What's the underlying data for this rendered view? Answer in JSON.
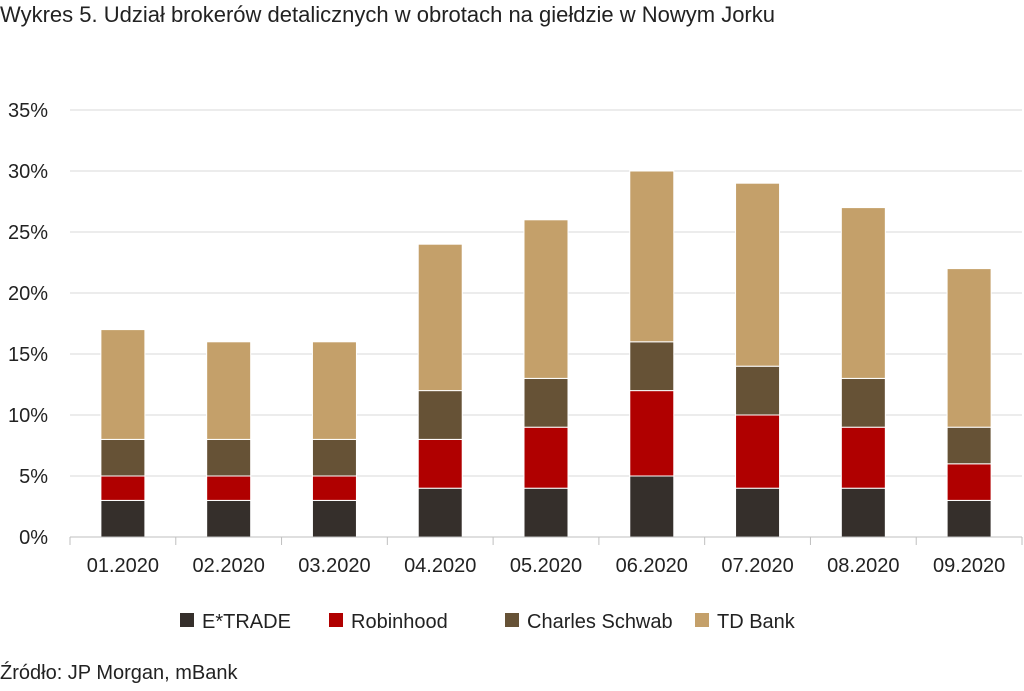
{
  "chart_data": {
    "type": "bar",
    "stacked": true,
    "title": "Wykres 5. Udział brokerów detalicznych w obrotach na giełdzie w Nowym Jorku",
    "source": "Źródło: JP Morgan, mBank",
    "categories": [
      "01.2020",
      "02.2020",
      "03.2020",
      "04.2020",
      "05.2020",
      "06.2020",
      "07.2020",
      "08.2020",
      "09.2020"
    ],
    "y_ticks": [
      "0%",
      "5%",
      "10%",
      "15%",
      "20%",
      "25%",
      "30%",
      "35%"
    ],
    "ylim": [
      0,
      35
    ],
    "grid": true,
    "legend_position": "bottom",
    "series": [
      {
        "name": "E*TRADE",
        "color": "#352f2b",
        "values": [
          3,
          3,
          3,
          4,
          4,
          5,
          4,
          4,
          3
        ]
      },
      {
        "name": "Robinhood",
        "color": "#b00000",
        "values": [
          2,
          2,
          2,
          4,
          5,
          7,
          6,
          5,
          3
        ]
      },
      {
        "name": "Charles Schwab",
        "color": "#665236",
        "values": [
          3,
          3,
          3,
          4,
          4,
          4,
          4,
          4,
          3
        ]
      },
      {
        "name": "TD Bank",
        "color": "#c4a06a",
        "values": [
          9,
          8,
          8,
          12,
          13,
          14,
          15,
          14,
          13
        ]
      }
    ]
  }
}
